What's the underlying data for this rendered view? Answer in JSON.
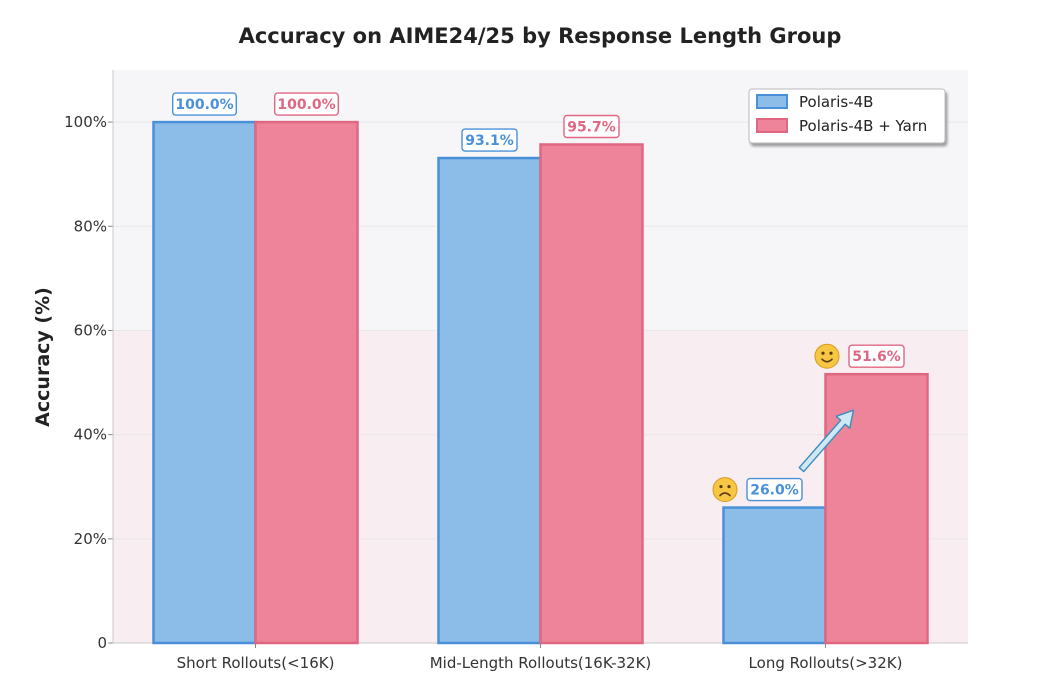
{
  "chart_data": {
    "type": "bar",
    "title": "Accuracy on AIME24/25 by Response Length Group",
    "xlabel": "",
    "ylabel": "Accuracy (%)",
    "ylim": [
      0,
      110
    ],
    "yticks": [
      0,
      20,
      40,
      60,
      80,
      100
    ],
    "ytick_labels": [
      "0",
      "20%",
      "40%",
      "60%",
      "80%",
      "100%"
    ],
    "categories": [
      "Short Rollouts(<16K)",
      "Mid-Length Rollouts(16K-32K)",
      "Long Rollouts(>32K)"
    ],
    "series": [
      {
        "name": "Polaris-4B",
        "values": [
          100.0,
          93.1,
          26.0
        ],
        "labels": [
          "100.0%",
          "93.1%",
          "26.0%"
        ],
        "color": "#8bbde8",
        "edge_color": "#4a90d9",
        "label_color": "#4a90d9"
      },
      {
        "name": "Polaris-4B + Yarn",
        "values": [
          100.0,
          95.7,
          51.6
        ],
        "labels": [
          "100.0%",
          "95.7%",
          "51.6%"
        ],
        "color": "#ee8499",
        "edge_color": "#e06782",
        "label_color": "#e06782"
      }
    ],
    "background_bands": [
      {
        "from": 60,
        "to": 110,
        "color": "#f6f6f8"
      },
      {
        "from": 0,
        "to": 60,
        "color": "#f8edf1"
      }
    ],
    "annotations": [
      {
        "type": "emoji",
        "icon": "sad-face-icon",
        "char": "🙁",
        "category_index": 2,
        "series_index": 0
      },
      {
        "type": "emoji",
        "icon": "smile-face-icon",
        "char": "🙂",
        "category_index": 2,
        "series_index": 1
      },
      {
        "type": "arrow",
        "icon": "up-arrow-icon",
        "from_series": 0,
        "to_series": 1,
        "category_index": 2
      }
    ],
    "grid": true,
    "legend_position": "top-right"
  }
}
